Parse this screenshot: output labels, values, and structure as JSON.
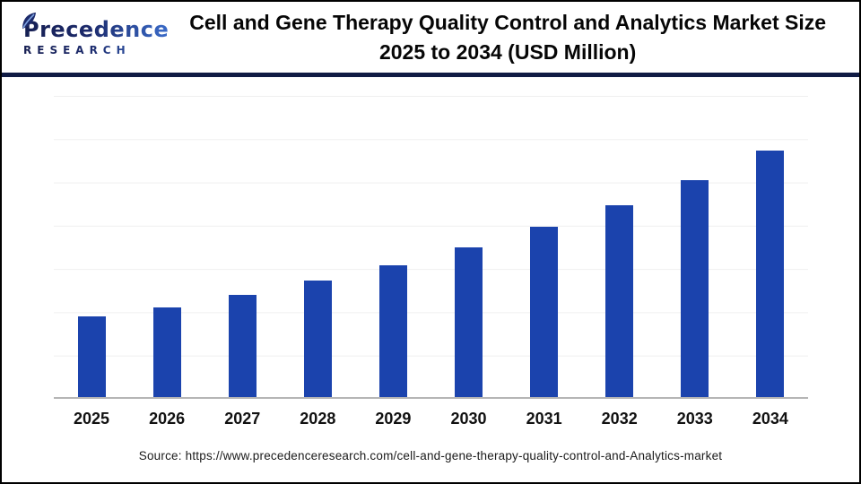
{
  "header": {
    "logo": {
      "wordmark": "Precedence",
      "subtitle": "RESEARCH"
    },
    "title_line1": "Cell and Gene Therapy Quality Control and Analytics Market Size",
    "title_line2": "2025 to 2034 (USD Million)"
  },
  "chart_data": {
    "type": "bar",
    "title": "Cell and Gene Therapy Quality Control and Analytics Market Size 2025 to 2034 (USD Million)",
    "categories": [
      "2025",
      "2026",
      "2027",
      "2028",
      "2029",
      "2030",
      "2031",
      "2032",
      "2033",
      "2034"
    ],
    "values": [
      32.7,
      36.6,
      41.6,
      47.3,
      53.4,
      60.9,
      69.1,
      77.9,
      88.2,
      100
    ],
    "value_note": "Figure shows no y-axis scale or data labels; values estimated from bar heights relative to 2034 = 100",
    "xlabel": "",
    "ylabel": "",
    "ylim": [
      0,
      123
    ],
    "grid": "horizontal light-gray gridlines, 7 lines",
    "legend_position": "none",
    "bar_color": "#1b43ad",
    "axis_color": "#b5b5b5"
  },
  "colors": {
    "bar": "#1b43ad",
    "header_rule": "#101b44",
    "logo_navy": "#1c2a6b",
    "logo_blue": "#3a6bc9",
    "gridline": "#f0f0f0",
    "outer_border": "#000000"
  },
  "footer": {
    "source": "Source: https://www.precedenceresearch.com/cell-and-gene-therapy-quality-control-and-Analytics-market"
  }
}
